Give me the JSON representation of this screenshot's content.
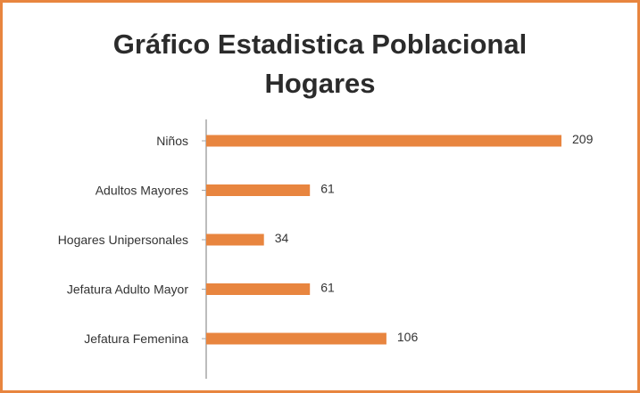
{
  "chart_data": {
    "type": "bar",
    "orientation": "horizontal",
    "title": [
      "Gráfico Estadistica Poblacional",
      "Hogares"
    ],
    "categories": [
      "Niños",
      "Adultos Mayores",
      "Hogares Unipersonales",
      "Jefatura Adulto Mayor",
      "Jefatura Femenina"
    ],
    "values": [
      209,
      61,
      34,
      61,
      106
    ],
    "data_labels": [
      "209",
      "61",
      "34",
      "61",
      "106"
    ],
    "xlim": [
      0,
      209
    ],
    "grid": false,
    "legend": "none",
    "bar_color": "#e8853f",
    "axis_color": "#a6a6a6",
    "frame_color": "#e8853f"
  }
}
